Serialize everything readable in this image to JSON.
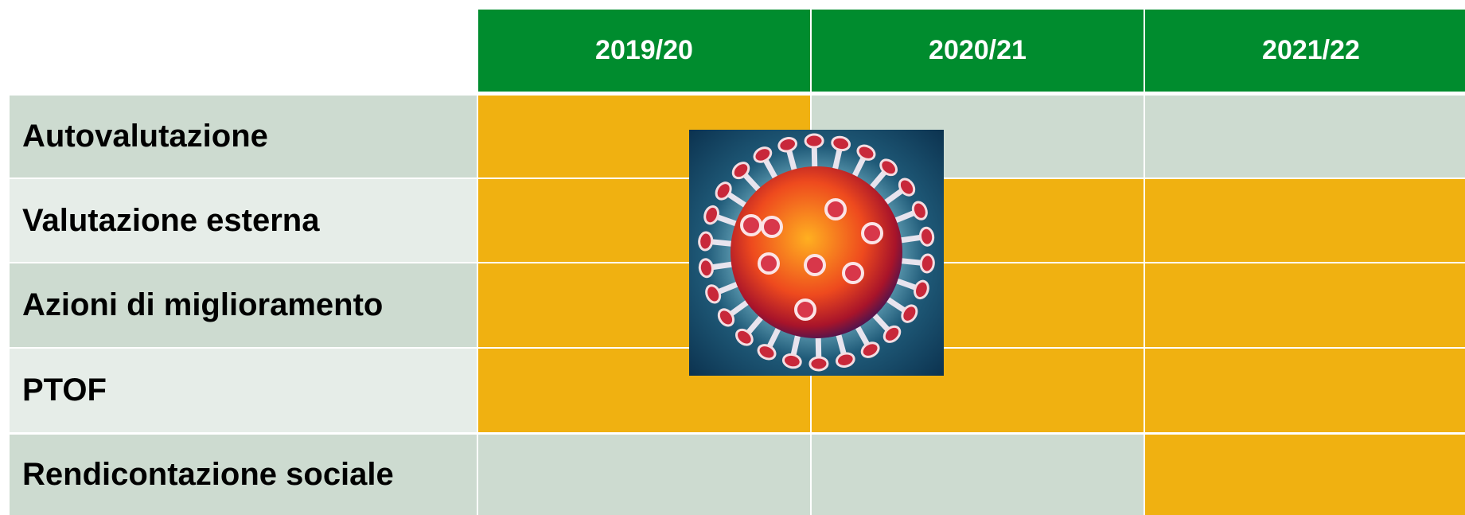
{
  "table": {
    "header_color": "#008c2e",
    "columns": [
      "2019/20",
      "2020/21",
      "2021/22"
    ],
    "rows": [
      {
        "label": "Autovalutazione",
        "label_color": "#cddbd0",
        "cells": [
          "#f0b111",
          "#cddbd0",
          "#cddbd0"
        ]
      },
      {
        "label": "Valutazione esterna",
        "label_color": "#e6ede8",
        "cells": [
          "#f0b111",
          "#f0b111",
          "#f0b111"
        ]
      },
      {
        "label": "Azioni di miglioramento",
        "label_color": "#cddbd0",
        "cells": [
          "#f0b111",
          "#f0b111",
          "#f0b111"
        ]
      },
      {
        "label": "PTOF",
        "label_color": "#e6ede8",
        "cells": [
          "#f0b111",
          "#f0b111",
          "#f0b111"
        ]
      },
      {
        "label": "Rendicontazione sociale",
        "label_color": "#cddbd0",
        "cells": [
          "#cddbd0",
          "#cddbd0",
          "#f0b111"
        ]
      }
    ]
  }
}
